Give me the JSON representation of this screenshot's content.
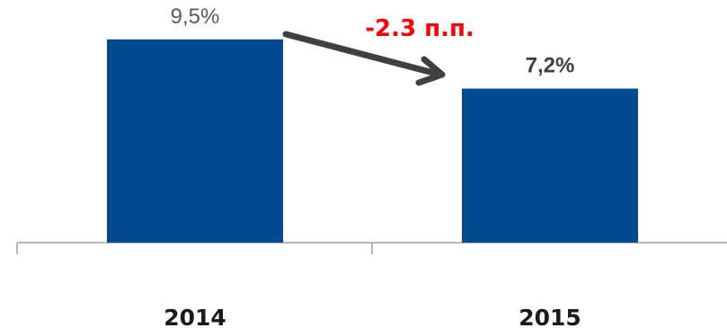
{
  "chart_data": {
    "type": "bar",
    "categories": [
      "2014",
      "2015"
    ],
    "values": [
      9.5,
      7.2
    ],
    "value_labels": [
      "9,5%",
      "7,2%"
    ],
    "unit": "%",
    "ylim": [
      0,
      10.5
    ],
    "grid": false,
    "bar_color": "#004a8f",
    "annotation": {
      "text": "-2.3 п.п.",
      "color": "#ff0000",
      "arrow_from": "2014",
      "arrow_to": "2015",
      "arrow_color": "#404040"
    },
    "axis_color": "#a0a0a0",
    "value_label_colors": [
      "#595959",
      "#404040"
    ],
    "value_label_weights": [
      "normal",
      "bold"
    ]
  }
}
